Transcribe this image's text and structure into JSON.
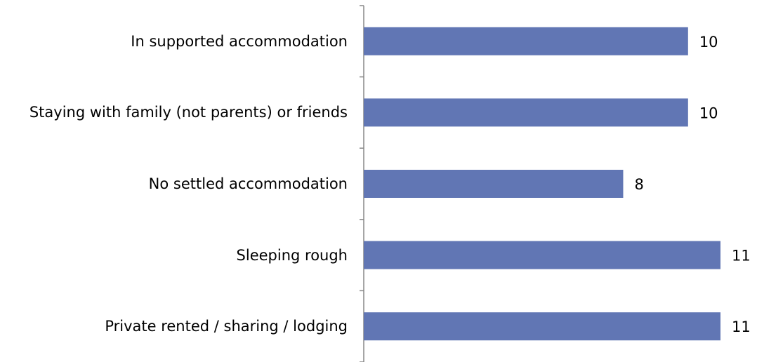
{
  "chart_data": {
    "type": "bar",
    "orientation": "horizontal",
    "categories": [
      "In supported accommodation",
      "Staying with family (not parents) or friends",
      "No settled accommodation",
      "Sleeping rough",
      "Private rented / sharing / lodging"
    ],
    "values": [
      10,
      10,
      8,
      11,
      11
    ],
    "color": "#6176b4"
  }
}
